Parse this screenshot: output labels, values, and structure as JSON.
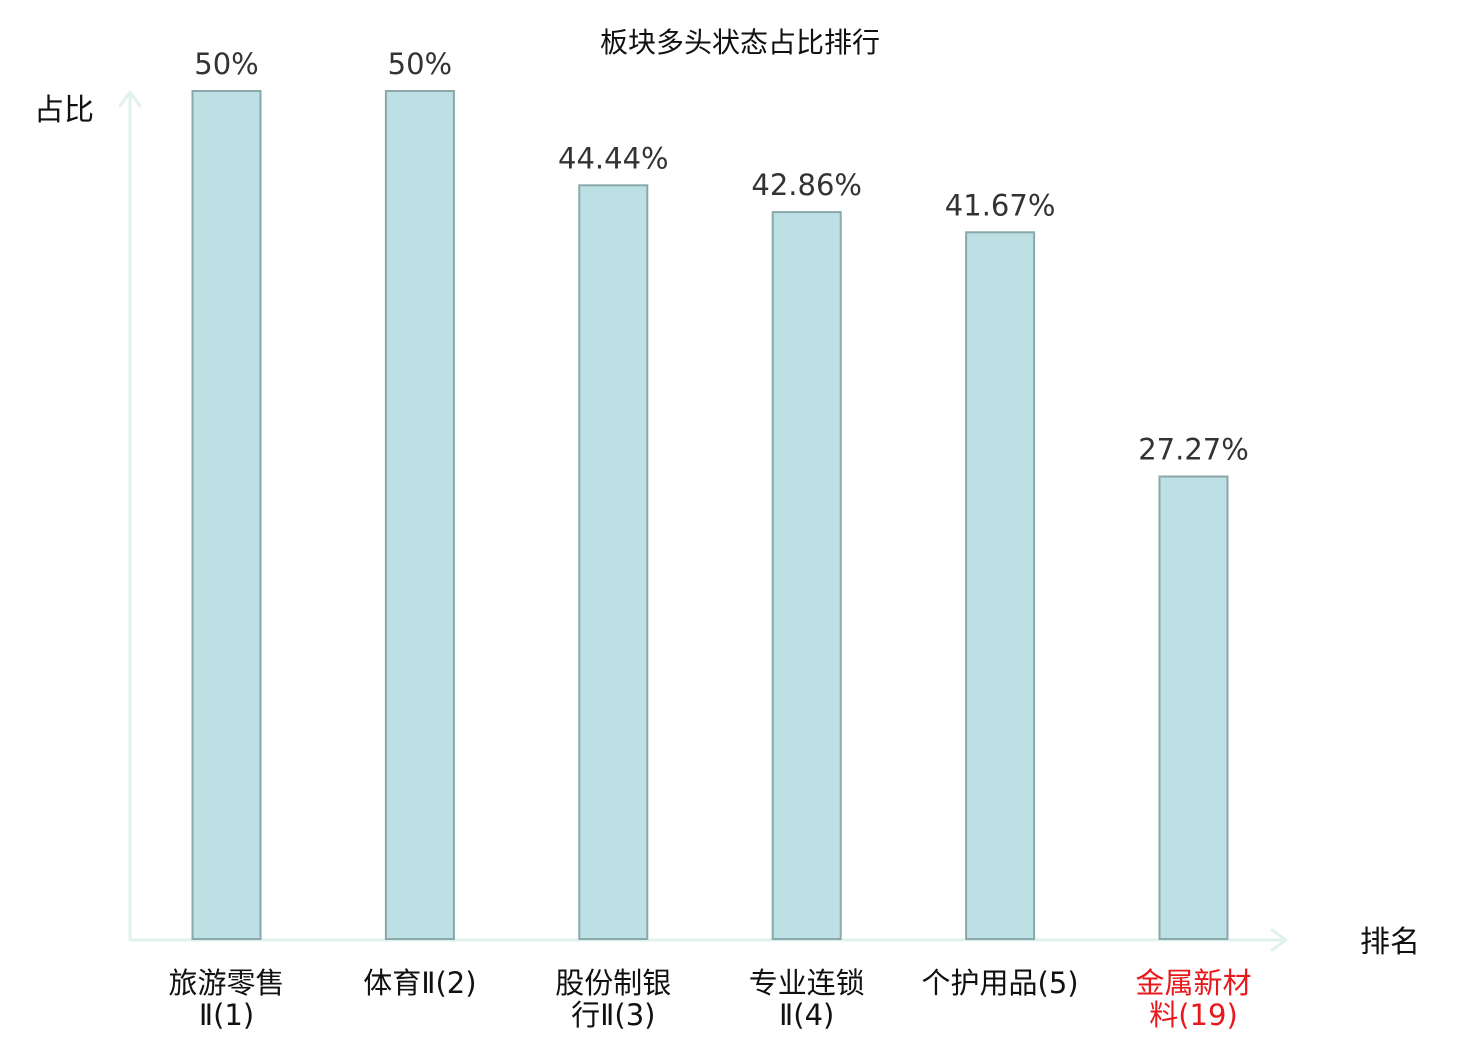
{
  "chart_data": {
    "type": "bar",
    "title": "板块多头状态占比排行",
    "ylabel": "占比",
    "xlabel": "排名",
    "ylim": [
      0,
      50
    ],
    "grid": false,
    "categories": [
      {
        "lines": [
          "旅游零售",
          "Ⅱ(1)"
        ],
        "highlight": false
      },
      {
        "lines": [
          "体育Ⅱ(2)"
        ],
        "highlight": false
      },
      {
        "lines": [
          "股份制银",
          "行Ⅱ(3)"
        ],
        "highlight": false
      },
      {
        "lines": [
          "专业连锁",
          "Ⅱ(4)"
        ],
        "highlight": false
      },
      {
        "lines": [
          "个护用品(5)"
        ],
        "highlight": false
      },
      {
        "lines": [
          "金属新材",
          "料(19)"
        ],
        "highlight": true
      }
    ],
    "values": [
      50,
      50,
      44.44,
      42.86,
      41.67,
      27.27
    ],
    "value_labels": [
      "50%",
      "50%",
      "44.44%",
      "42.86%",
      "41.67%",
      "27.27%"
    ]
  },
  "colors": {
    "bar_fill": "#bce0e3",
    "bar_stroke": "#8aa8aa",
    "axis": "#dff2ee",
    "text": "#333333",
    "label_text": "#111111",
    "highlight": "#e8191c"
  }
}
